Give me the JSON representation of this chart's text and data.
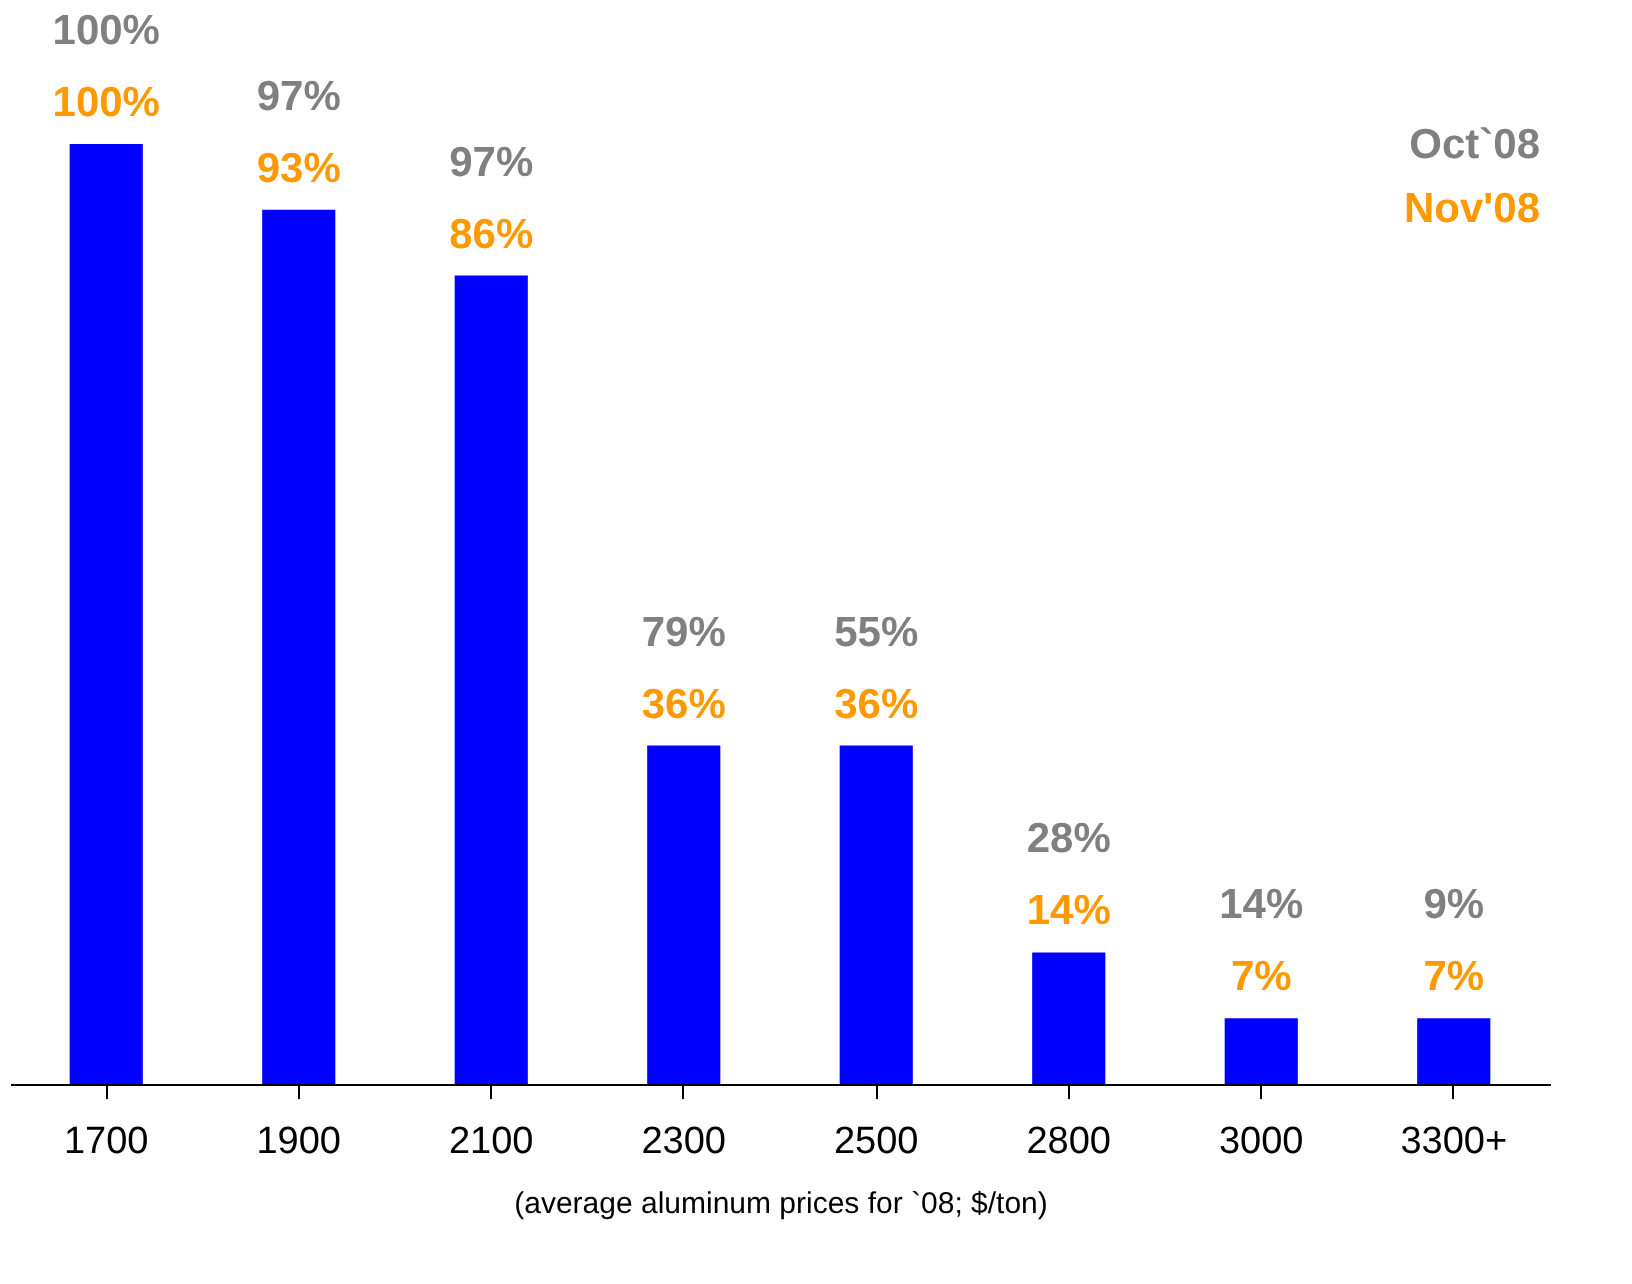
{
  "chart_data": {
    "type": "bar",
    "xlabel": "(average aluminum prices for `08; $/ton)",
    "categories": [
      "1700",
      "1900",
      "2100",
      "2300",
      "2500",
      "2800",
      "3000",
      "3300+"
    ],
    "series": [
      {
        "name": "Nov'08",
        "color": "#0000ff",
        "values": [
          100,
          93,
          86,
          36,
          36,
          14,
          7,
          7
        ],
        "value_labels": [
          "100%",
          "93%",
          "86%",
          "36%",
          "36%",
          "14%",
          "7%",
          "7%"
        ]
      }
    ],
    "annotations": [
      "Oct`08",
      "100%",
      "97%",
      "97%",
      "79%",
      "55%",
      "28%",
      "14%",
      "9%"
    ],
    "legend": "top right",
    "grid": false
  }
}
